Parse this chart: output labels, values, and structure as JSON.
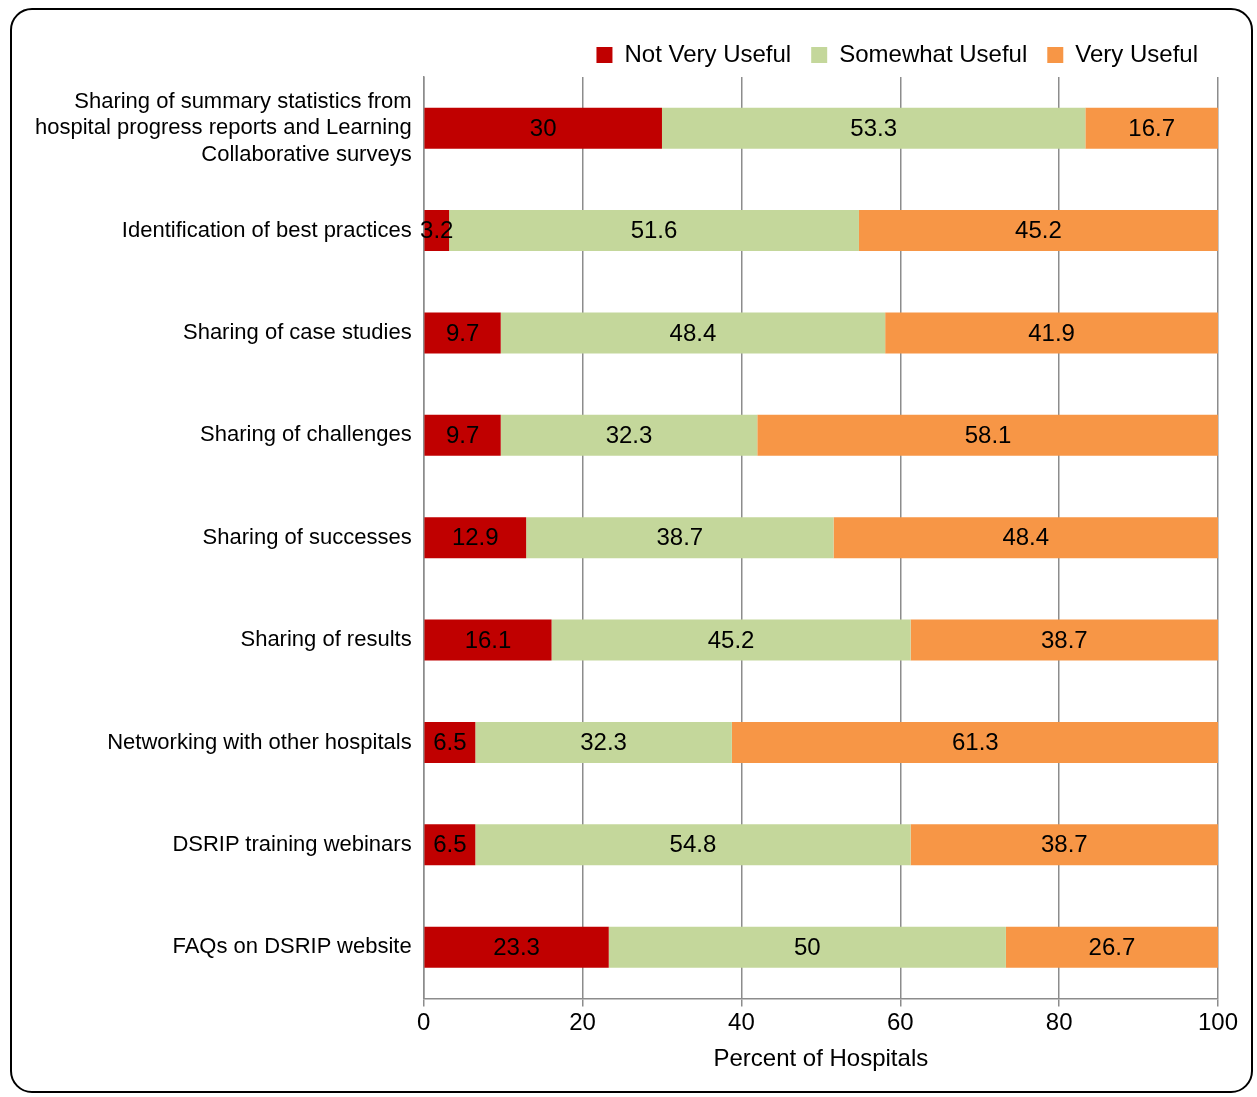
{
  "chart_data": {
    "type": "bar",
    "orientation": "horizontal",
    "stacked": true,
    "categories": [
      "Sharing of summary statistics from hospital progress reports and Learning Collaborative surveys",
      "Identification of best practices",
      "Sharing of case studies",
      "Sharing of challenges",
      "Sharing of successes",
      "Sharing of results",
      "Networking with other hospitals",
      "DSRIP training webinars",
      "FAQs on DSRIP website"
    ],
    "series": [
      {
        "name": "Not Very Useful",
        "color": "#c00000",
        "values": [
          30,
          3.2,
          9.7,
          9.7,
          12.9,
          16.1,
          6.5,
          6.5,
          23.3
        ]
      },
      {
        "name": "Somewhat Useful",
        "color": "#c4d79b",
        "values": [
          53.3,
          51.6,
          48.4,
          32.3,
          38.7,
          45.2,
          32.3,
          54.8,
          50
        ]
      },
      {
        "name": "Very Useful",
        "color": "#f79646",
        "values": [
          16.7,
          45.2,
          41.9,
          58.1,
          48.4,
          38.7,
          61.3,
          38.7,
          26.7
        ]
      }
    ],
    "xlabel": "Percent of Hospitals",
    "xlim": [
      0,
      100
    ],
    "xticks": [
      0,
      20,
      40,
      60,
      80,
      100
    ],
    "grid": "x",
    "legend": "top",
    "data_labels": true
  }
}
